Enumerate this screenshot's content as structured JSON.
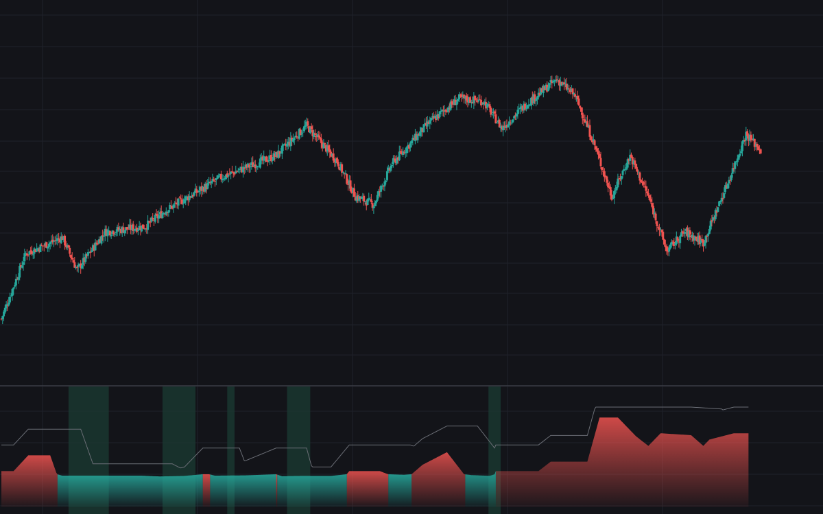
{
  "colors": {
    "background": "#131419",
    "grid": "#1f222a",
    "up": "#26a69a",
    "down": "#ef5350",
    "divider": "#3a3d45",
    "oscillator_line": "#6b6e76",
    "highlight_band": "#1b3b33"
  },
  "chart_data": [
    {
      "type": "candlestick",
      "title": "",
      "xlabel": "",
      "ylabel": "",
      "grid": true,
      "ylim": [
        0,
        100
      ],
      "key_points": [
        {
          "x": 0,
          "y": 10
        },
        {
          "x": 10,
          "y": 22
        },
        {
          "x": 20,
          "y": 34
        },
        {
          "x": 50,
          "y": 40
        },
        {
          "x": 62,
          "y": 28
        },
        {
          "x": 85,
          "y": 42
        },
        {
          "x": 118,
          "y": 44
        },
        {
          "x": 135,
          "y": 50
        },
        {
          "x": 180,
          "y": 62
        },
        {
          "x": 225,
          "y": 70
        },
        {
          "x": 250,
          "y": 81
        },
        {
          "x": 275,
          "y": 68
        },
        {
          "x": 290,
          "y": 55
        },
        {
          "x": 305,
          "y": 52
        },
        {
          "x": 320,
          "y": 67
        },
        {
          "x": 350,
          "y": 82
        },
        {
          "x": 375,
          "y": 91
        },
        {
          "x": 395,
          "y": 90
        },
        {
          "x": 410,
          "y": 80
        },
        {
          "x": 430,
          "y": 89
        },
        {
          "x": 455,
          "y": 98
        },
        {
          "x": 470,
          "y": 92
        },
        {
          "x": 485,
          "y": 75
        },
        {
          "x": 500,
          "y": 55
        },
        {
          "x": 515,
          "y": 70
        },
        {
          "x": 530,
          "y": 55
        },
        {
          "x": 545,
          "y": 35
        },
        {
          "x": 560,
          "y": 42
        },
        {
          "x": 575,
          "y": 38
        },
        {
          "x": 595,
          "y": 60
        },
        {
          "x": 610,
          "y": 78
        },
        {
          "x": 622,
          "y": 72
        }
      ]
    },
    {
      "type": "area",
      "title": "",
      "grid": true,
      "ylim": [
        -1,
        1
      ],
      "oscillator_points": [
        {
          "x": 0,
          "y": 0.05
        },
        {
          "x": 10,
          "y": 0.05
        },
        {
          "x": 22,
          "y": 0.3
        },
        {
          "x": 40,
          "y": 0.3
        },
        {
          "x": 50,
          "y": -0.25
        },
        {
          "x": 75,
          "y": -0.25
        },
        {
          "x": 115,
          "y": -0.25
        },
        {
          "x": 130,
          "y": -0.4
        },
        {
          "x": 150,
          "y": -0.3
        },
        {
          "x": 165,
          "y": 0.0
        },
        {
          "x": 170,
          "y": 0.0
        },
        {
          "x": 175,
          "y": -0.25
        },
        {
          "x": 200,
          "y": -0.2
        },
        {
          "x": 225,
          "y": 0.0
        },
        {
          "x": 230,
          "y": -0.35
        },
        {
          "x": 245,
          "y": -0.3
        },
        {
          "x": 270,
          "y": -0.3
        },
        {
          "x": 285,
          "y": 0.05
        },
        {
          "x": 310,
          "y": 0.05
        },
        {
          "x": 330,
          "y": -0.1
        },
        {
          "x": 345,
          "y": 0.15
        },
        {
          "x": 365,
          "y": 0.35
        },
        {
          "x": 385,
          "y": -0.15
        },
        {
          "x": 400,
          "y": -0.28
        },
        {
          "x": 405,
          "y": 0.05
        },
        {
          "x": 440,
          "y": 0.05
        },
        {
          "x": 450,
          "y": 0.2
        },
        {
          "x": 480,
          "y": 0.2
        },
        {
          "x": 490,
          "y": 0.9
        },
        {
          "x": 505,
          "y": 0.9
        },
        {
          "x": 520,
          "y": 0.6
        },
        {
          "x": 530,
          "y": 0.45
        },
        {
          "x": 540,
          "y": 0.65
        },
        {
          "x": 565,
          "y": 0.62
        },
        {
          "x": 575,
          "y": 0.45
        },
        {
          "x": 580,
          "y": 0.55
        },
        {
          "x": 600,
          "y": 0.65
        },
        {
          "x": 612,
          "y": 0.65
        }
      ],
      "highlight_regions": [
        [
          55,
          88
        ],
        [
          132,
          159
        ],
        [
          185,
          191
        ],
        [
          234,
          253
        ],
        [
          399,
          409
        ]
      ]
    }
  ]
}
